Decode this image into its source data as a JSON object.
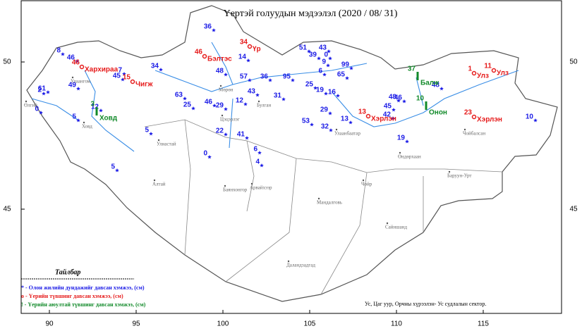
{
  "title": "Үертэй голуудын мэдээлэл (2020 / 08/ 31)",
  "lon_ticks": [
    90,
    95,
    100,
    105,
    110,
    115
  ],
  "lat_ticks": [
    45,
    50
  ],
  "stations": [
    36,
    8,
    46,
    34,
    7,
    45,
    48,
    57,
    36,
    95,
    43,
    51,
    39,
    43,
    0,
    9,
    99,
    65,
    6,
    2,
    61,
    49,
    0,
    5,
    12,
    63,
    25,
    46,
    29,
    12,
    31,
    25,
    19,
    16,
    45,
    48,
    46,
    48,
    29,
    32,
    53,
    13,
    42,
    19,
    10,
    22,
    41,
    5,
    6,
    4,
    0,
    5,
    14
  ],
  "flood": [
    {
      "value": 46,
      "river": "Хархираа"
    },
    {
      "value": 15,
      "river": "Чигж"
    },
    {
      "value": 46,
      "river": "Бэлтэс"
    },
    {
      "value": 34,
      "river": "Үр"
    },
    {
      "value": 13,
      "river": "Хэрлэн"
    },
    {
      "value": 1,
      "river": "Улз"
    },
    {
      "value": 11,
      "river": "Улз"
    },
    {
      "value": 23,
      "river": "Хэрлэн"
    }
  ],
  "danger": [
    {
      "value": 3,
      "river": "Ховд"
    },
    {
      "value": 37,
      "river": "Балж"
    },
    {
      "value": 10,
      "river": "Онон"
    }
  ],
  "places": [
    "Алтай",
    "Мандалговь",
    "Даландзадгад",
    "Сайншанд",
    "Чойр",
    "Баруун-Урт",
    "Өндөрхаан",
    "Улаанбаатар",
    "Булган",
    "Мөрөн",
    "Улиастай",
    "Баянхонгор",
    "Арвайхээр",
    "Цэцэрлэг",
    "Ховд",
    "Өлгий",
    "Улаангом",
    "Чойбалсан"
  ],
  "legend": {
    "title": "Тайлбар",
    "items": [
      "* - Олон жилийн дундажийг давсан хэмжээ, (см)",
      "о - Үерийн түвшинг давсан хэмжээ, (см)",
      "! - Үерийн аюултай түвшинг давсан хэмжээ, (см)"
    ]
  },
  "credit": "Ус, Цаг уур, Орчны хүрээлэн- Ус судлалын сектор."
}
